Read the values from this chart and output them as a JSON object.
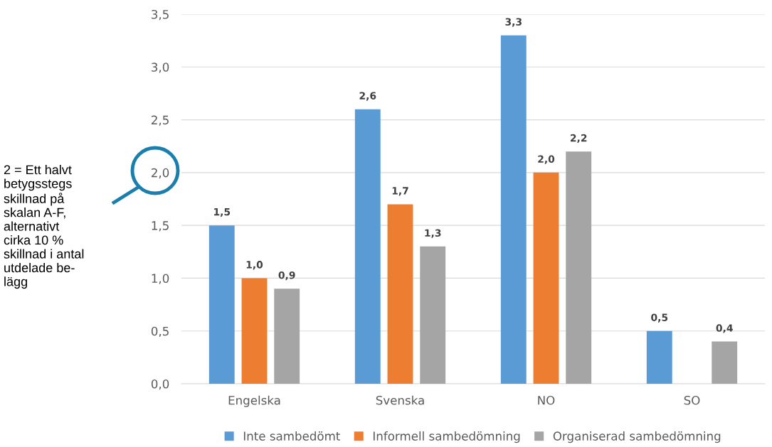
{
  "chart_data": {
    "type": "bar",
    "categories": [
      "Engelska",
      "Svenska",
      "NO",
      "SO"
    ],
    "series": [
      {
        "name": "Inte sambedömt",
        "color": "#5b9bd5",
        "values": [
          1.5,
          2.6,
          3.3,
          0.5
        ],
        "value_labels": [
          "1,5",
          "2,6",
          "3,3",
          "0,5"
        ]
      },
      {
        "name": "Informell sambedömning",
        "color": "#ed7d31",
        "values": [
          1.0,
          1.7,
          2.0,
          null
        ],
        "value_labels": [
          "1,0",
          "1,7",
          "2,0",
          null
        ]
      },
      {
        "name": "Organiserad sambedömning",
        "color": "#a5a5a5",
        "values": [
          0.9,
          1.3,
          2.2,
          0.4
        ],
        "value_labels": [
          "0,9",
          "1,3",
          "2,2",
          "0,4"
        ]
      }
    ],
    "ylim": [
      0,
      3.5
    ],
    "yticks": [
      {
        "value": 0,
        "label": "0,0"
      },
      {
        "value": 0.5,
        "label": "0,5"
      },
      {
        "value": 1,
        "label": "1,0"
      },
      {
        "value": 1.5,
        "label": "1,5"
      },
      {
        "value": 2,
        "label": "2,0"
      },
      {
        "value": 2.5,
        "label": "2,5"
      },
      {
        "value": 3,
        "label": "3,0"
      },
      {
        "value": 3.5,
        "label": "3,5"
      }
    ],
    "grid": "y",
    "legend": "bottom",
    "annotations": [
      "2 = Ett halvt\nbetygsstegs\nskillnad på\nskalan A-F,\nalternativt\ncirka 10 %\nskillnad i antal\nutdelade be-\nlägg"
    ]
  }
}
